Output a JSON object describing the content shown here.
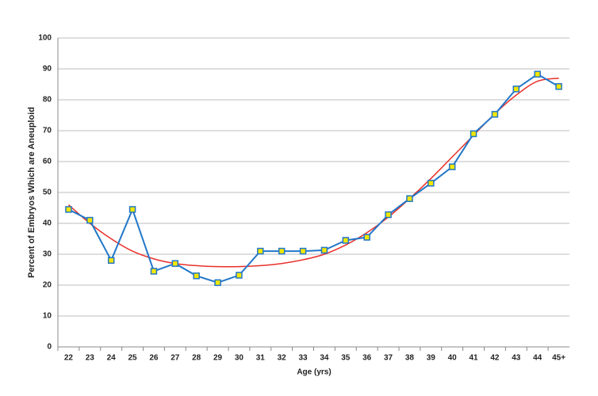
{
  "chart_data": {
    "type": "line",
    "x_label": "Age (yrs)",
    "y_label": "Percent of Embryos Which are Aneuploid",
    "categories": [
      "22",
      "23",
      "24",
      "25",
      "26",
      "27",
      "28",
      "29",
      "30",
      "31",
      "32",
      "33",
      "34",
      "35",
      "36",
      "37",
      "38",
      "39",
      "40",
      "41",
      "42",
      "43",
      "44",
      "45+"
    ],
    "series": [
      {
        "color": "#2277c8",
        "marker_color": "#f2e600",
        "values": [
          44.5,
          41,
          28,
          44.5,
          24.5,
          27,
          23,
          20.8,
          23.2,
          31,
          31,
          31,
          31.3,
          34.5,
          35.5,
          42.8,
          48,
          53,
          58.3,
          69,
          75.3,
          83.5,
          88.3,
          84.3
        ]
      },
      {
        "color": "#e8302a",
        "smooth": true,
        "values": [
          46,
          40,
          35,
          31,
          28.5,
          27,
          26.3,
          26,
          26,
          26.3,
          27,
          28.2,
          30,
          33,
          37,
          42,
          48,
          54.5,
          61.5,
          68.5,
          75.5,
          81.5,
          86,
          87
        ]
      }
    ],
    "ylim": [
      0,
      100
    ],
    "yticks": [
      0,
      10,
      20,
      30,
      40,
      50,
      60,
      70,
      80,
      90,
      100
    ],
    "grid": true
  }
}
